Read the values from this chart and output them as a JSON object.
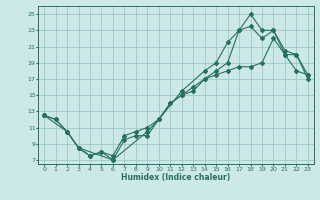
{
  "xlabel": "Humidex (Indice chaleur)",
  "bg_color": "#cde8e8",
  "grid_color": "#9ec8c8",
  "line_color": "#267060",
  "xlim": [
    -0.5,
    23.5
  ],
  "ylim": [
    6.5,
    26
  ],
  "xticks": [
    0,
    1,
    2,
    3,
    4,
    5,
    6,
    7,
    8,
    9,
    10,
    11,
    12,
    13,
    14,
    15,
    16,
    17,
    18,
    19,
    20,
    21,
    22,
    23
  ],
  "yticks": [
    7,
    9,
    11,
    13,
    15,
    17,
    19,
    21,
    23,
    25
  ],
  "line1_x": [
    0,
    1,
    2,
    3,
    4,
    5,
    6,
    7,
    8,
    9,
    10,
    11,
    12,
    13,
    14,
    15,
    16,
    17,
    18,
    19,
    20,
    21,
    22,
    23
  ],
  "line1_y": [
    12.5,
    12.0,
    10.5,
    8.5,
    7.5,
    8.0,
    7.5,
    10.0,
    10.5,
    11.0,
    12.0,
    14.0,
    15.0,
    15.5,
    17.0,
    17.5,
    18.0,
    18.5,
    18.5,
    19.0,
    22.0,
    20.0,
    18.0,
    17.5
  ],
  "line2_x": [
    0,
    1,
    2,
    3,
    4,
    5,
    6,
    7,
    8,
    9,
    10,
    11,
    12,
    13,
    14,
    15,
    16,
    17,
    18,
    19,
    20,
    21,
    22,
    23
  ],
  "line2_y": [
    12.5,
    12.0,
    10.5,
    8.5,
    7.5,
    8.0,
    7.0,
    9.5,
    10.0,
    10.0,
    12.0,
    14.0,
    15.0,
    16.0,
    17.0,
    18.0,
    19.0,
    23.0,
    25.0,
    23.0,
    23.0,
    20.0,
    20.0,
    17.0
  ],
  "line3_x": [
    0,
    2,
    3,
    6,
    9,
    10,
    12,
    14,
    15,
    16,
    17,
    18,
    19,
    20,
    21,
    22,
    23
  ],
  "line3_y": [
    12.5,
    10.5,
    8.5,
    7.0,
    10.5,
    12.0,
    15.5,
    18.0,
    19.0,
    21.5,
    23.0,
    23.5,
    22.0,
    23.0,
    20.5,
    20.0,
    17.5
  ]
}
